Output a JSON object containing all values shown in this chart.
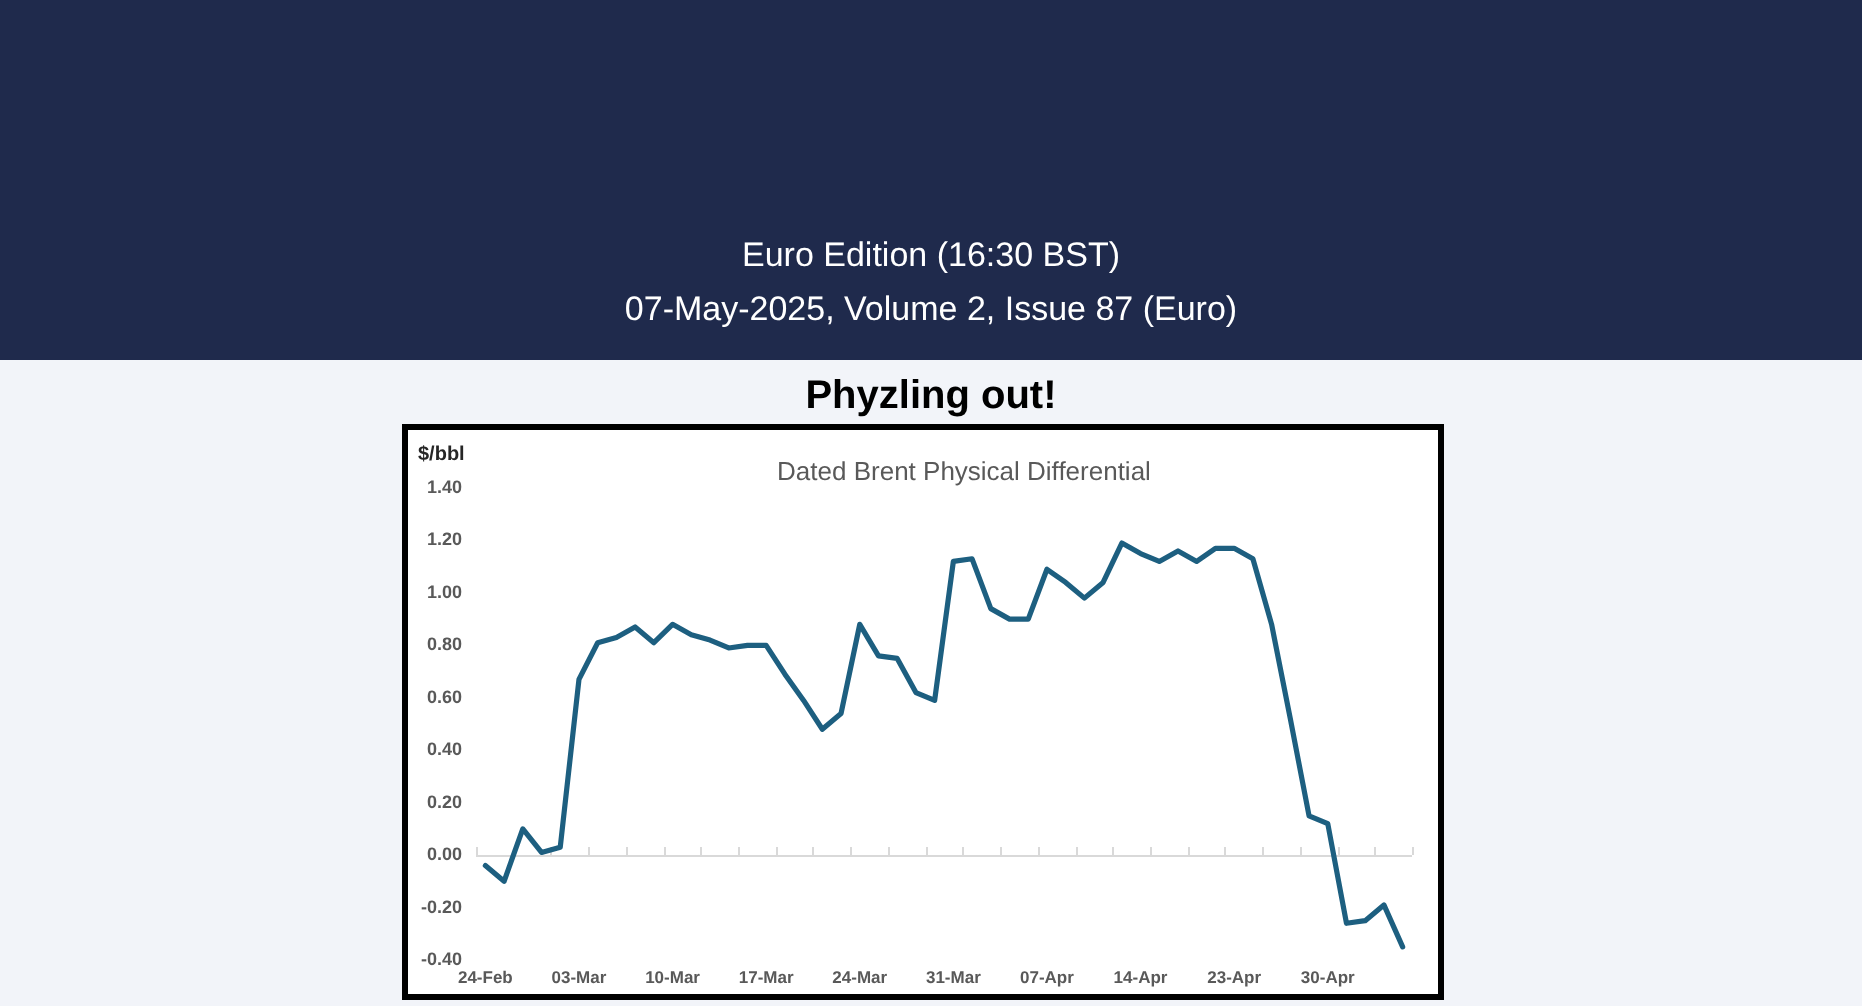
{
  "chart_data": {
    "type": "line",
    "title": "Phyzling out!",
    "subtitle": "Dated Brent Physical Differential",
    "ylabel": "$/bbl",
    "annotations": [
      "Euro Edition (16:30 BST)",
      "07-May-2025, Volume 2, Issue 87 (Euro)"
    ],
    "categories": [
      "24-Feb",
      null,
      null,
      null,
      null,
      "03-Mar",
      null,
      null,
      null,
      null,
      "10-Mar",
      null,
      null,
      null,
      null,
      "17-Mar",
      null,
      null,
      null,
      null,
      "24-Mar",
      null,
      null,
      null,
      null,
      "31-Mar",
      null,
      null,
      null,
      null,
      "07-Apr",
      null,
      null,
      null,
      null,
      "14-Apr",
      null,
      null,
      null,
      null,
      "23-Apr",
      null,
      null,
      null,
      null,
      "30-Apr",
      null,
      null,
      null,
      null
    ],
    "values": [
      -0.04,
      -0.1,
      0.1,
      0.01,
      0.03,
      0.67,
      0.81,
      0.83,
      0.87,
      0.81,
      0.88,
      0.84,
      0.82,
      0.79,
      0.8,
      0.8,
      0.69,
      0.59,
      0.48,
      0.54,
      0.88,
      0.76,
      0.75,
      0.62,
      0.59,
      1.12,
      1.13,
      0.94,
      0.9,
      0.9,
      1.09,
      1.04,
      0.98,
      1.04,
      1.19,
      1.15,
      1.12,
      1.16,
      1.12,
      1.17,
      1.17,
      1.13,
      0.88,
      0.52,
      0.15,
      0.12,
      -0.26,
      -0.25,
      -0.19,
      -0.35
    ],
    "color": "#1d5f80",
    "ylim": [
      -0.4,
      1.4
    ],
    "yticks": [
      {
        "value": -0.4,
        "label": "-0.40"
      },
      {
        "value": -0.2,
        "label": "-0.20"
      },
      {
        "value": 0,
        "label": "0.00"
      },
      {
        "value": 0.2,
        "label": "0.20"
      },
      {
        "value": 0.4,
        "label": "0.40"
      },
      {
        "value": 0.6,
        "label": "0.60"
      },
      {
        "value": 0.8,
        "label": "0.80"
      },
      {
        "value": 1.0,
        "label": "1.00"
      },
      {
        "value": 1.2,
        "label": "1.20"
      },
      {
        "value": 1.4,
        "label": "1.40"
      }
    ]
  }
}
